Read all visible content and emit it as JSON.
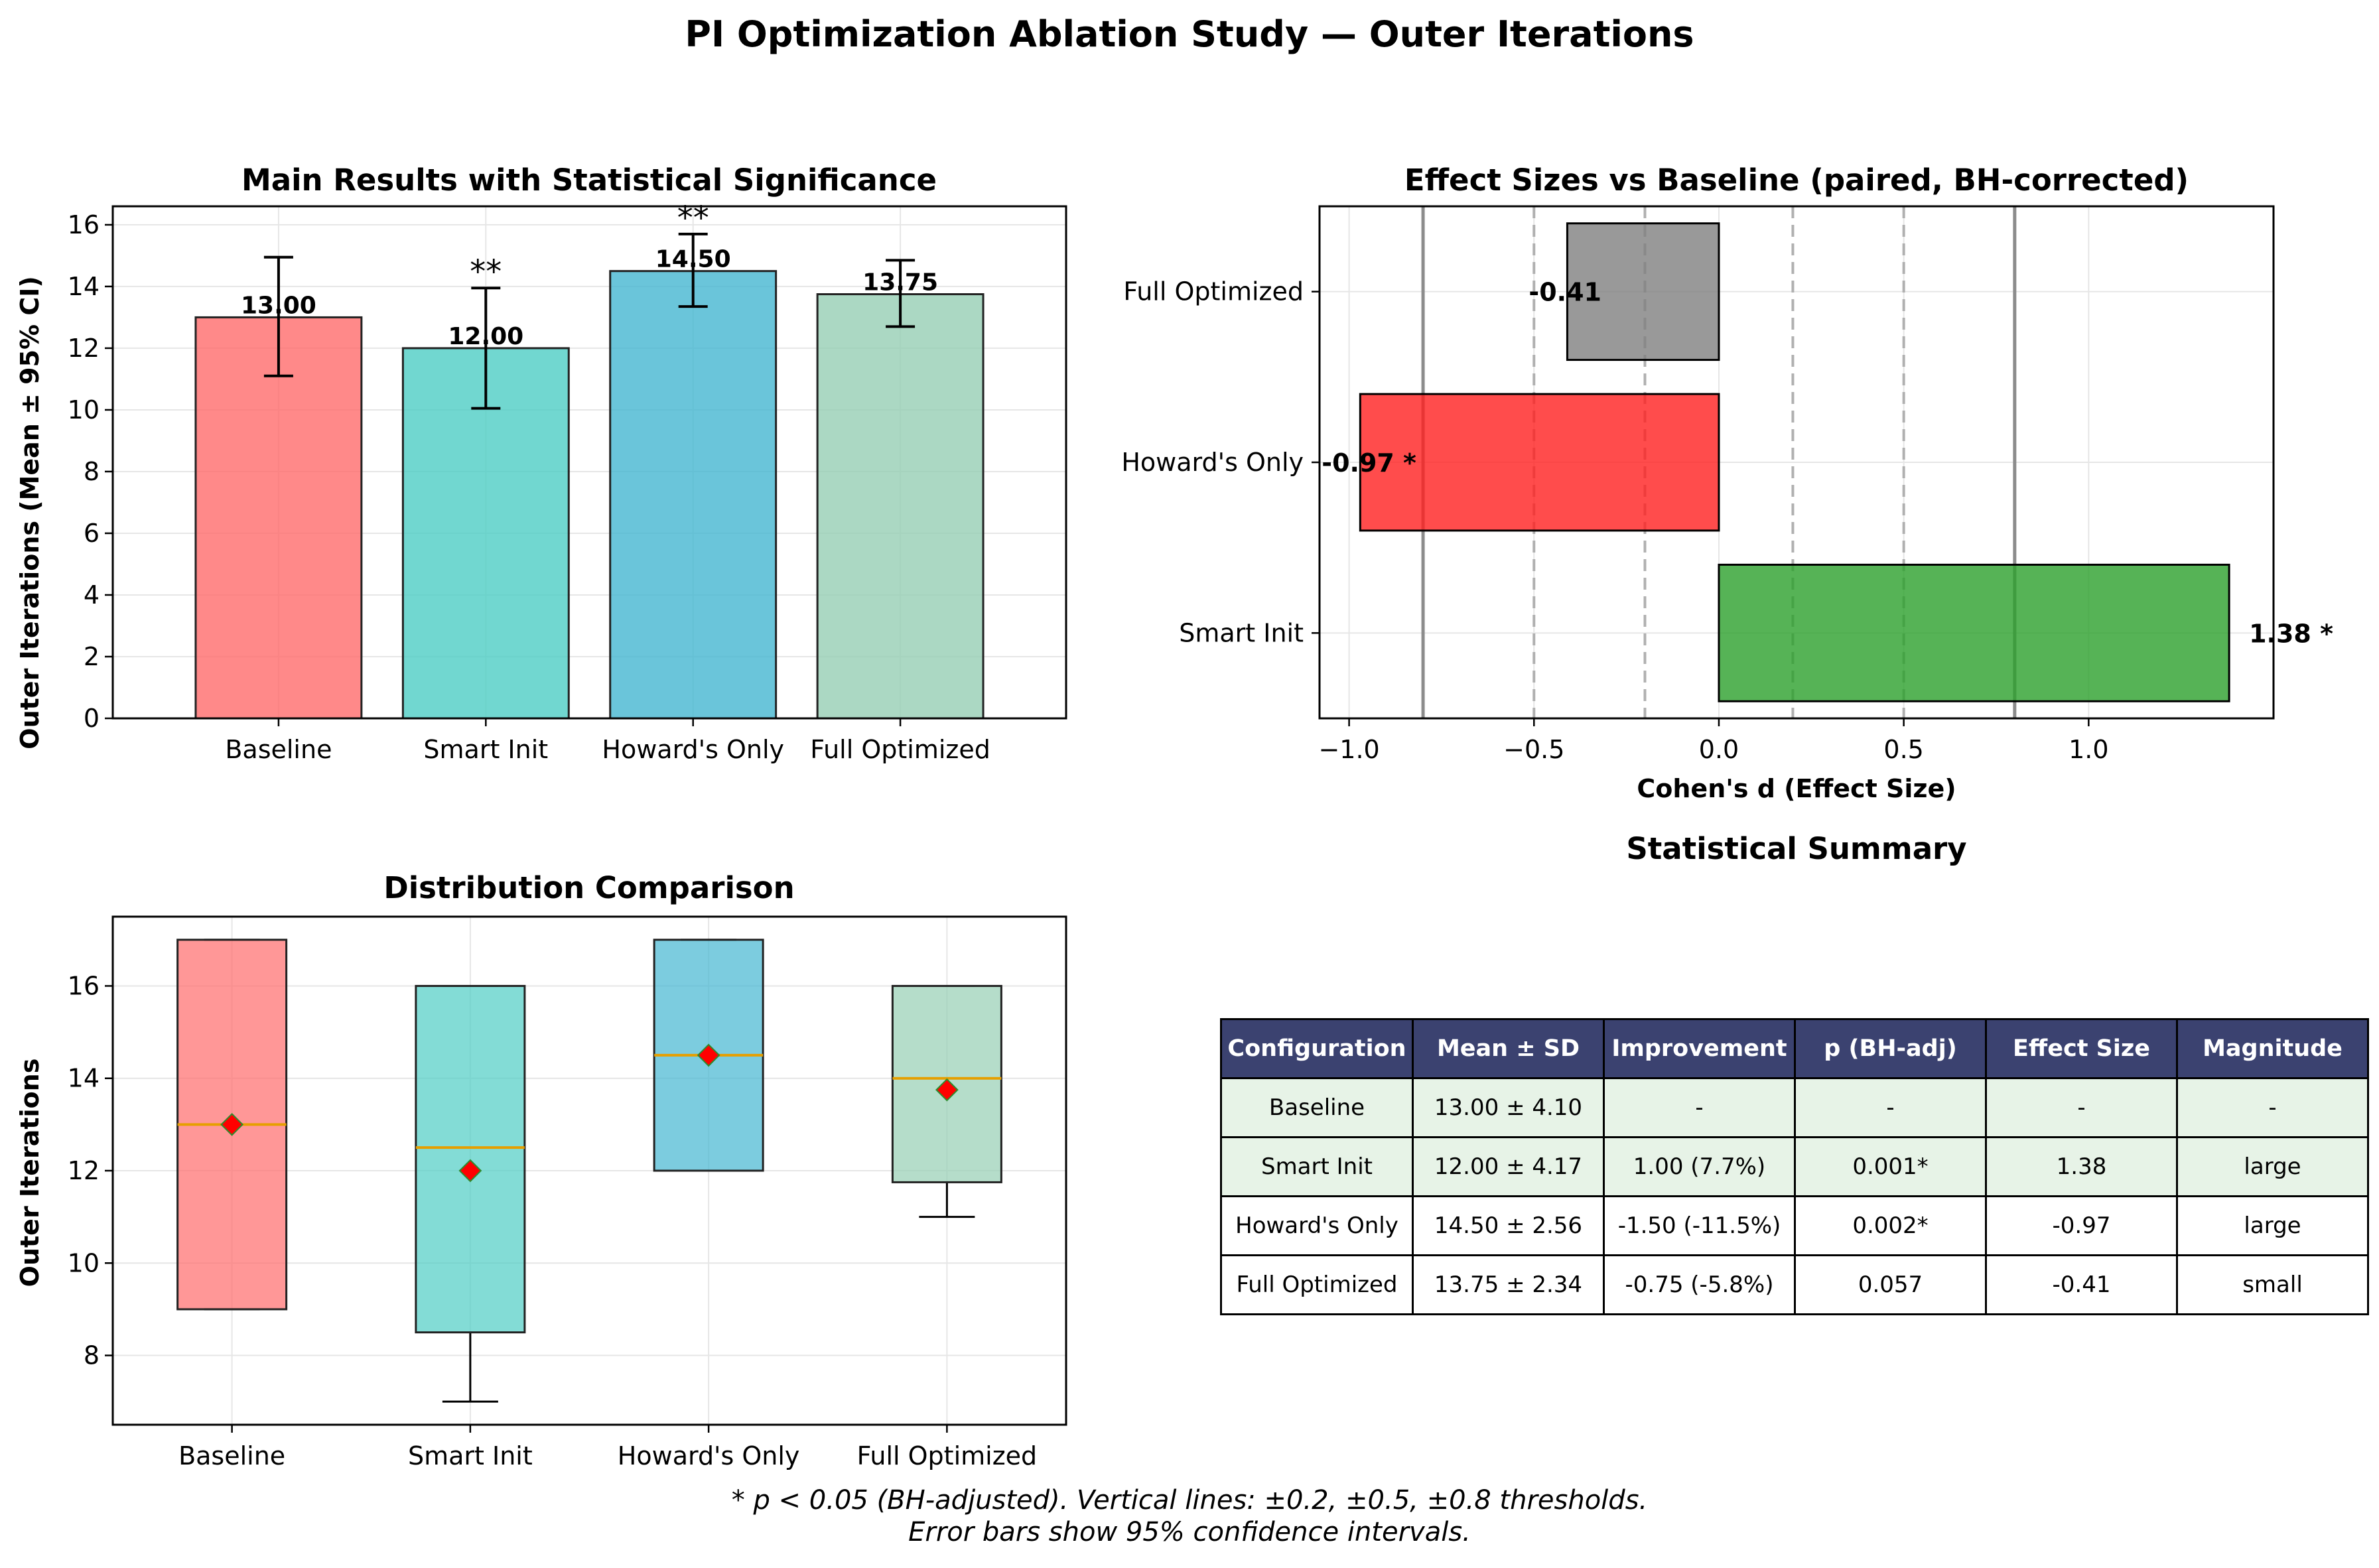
{
  "figure_title": "PI Optimization Ablation Study — Outer Iterations",
  "footnote": {
    "line1": "* p < 0.05 (BH-adjusted). Vertical lines: ±0.2, ±0.5, ±0.8 thresholds.",
    "line2": "Error bars show 95% confidence intervals."
  },
  "colors": {
    "baseline": "#ff6b6b",
    "smart_init": "#4ecdc4",
    "howards_only": "#45b7d1",
    "full_optimized": "#96ceb4",
    "effect_positive": "#2ca02c",
    "effect_negative": "#ff1f1f",
    "effect_neutral": "#808080",
    "mean_marker": "#ff0000",
    "median_line": "#e69f00",
    "table_header": "#3b4270",
    "table_shade": "#e7f3e7"
  },
  "chart_data": [
    {
      "id": "main",
      "type": "bar",
      "title": "Main Results with Statistical Significance",
      "xlabel": "",
      "ylabel": "Outer Iterations (Mean ± 95% CI)",
      "categories": [
        "Baseline",
        "Smart Init",
        "Howard's Only",
        "Full Optimized"
      ],
      "values": [
        13.0,
        12.0,
        14.5,
        13.75
      ],
      "value_labels": [
        "13.00",
        "12.00",
        "14.50",
        "13.75"
      ],
      "ci_low": [
        11.1,
        10.05,
        13.35,
        12.7
      ],
      "ci_high": [
        14.95,
        13.95,
        15.7,
        14.85
      ],
      "significance": [
        "",
        "**",
        "**",
        ""
      ],
      "ylim": [
        0,
        16.6
      ],
      "yticks": [
        0,
        2,
        4,
        6,
        8,
        10,
        12,
        14,
        16
      ],
      "grid": true
    },
    {
      "id": "effect",
      "type": "bar",
      "orientation": "horizontal",
      "title": "Effect Sizes vs Baseline (paired, BH-corrected)",
      "xlabel": "Cohen's d (Effect Size)",
      "ylabel": "",
      "categories": [
        "Smart Init",
        "Howard's Only",
        "Full Optimized"
      ],
      "values": [
        1.38,
        -0.97,
        -0.41
      ],
      "value_labels": [
        "1.38 *",
        "-0.97 *",
        "-0.41"
      ],
      "xlim": [
        -1.08,
        1.5
      ],
      "xticks": [
        -1.0,
        -0.5,
        0.0,
        0.5,
        1.0
      ],
      "xtick_labels": [
        "−1.0",
        "−0.5",
        "0.0",
        "0.5",
        "1.0"
      ],
      "thresholds": [
        -0.8,
        -0.5,
        -0.2,
        0.2,
        0.5,
        0.8
      ],
      "grid": true
    },
    {
      "id": "dist",
      "type": "box",
      "title": "Distribution Comparison",
      "xlabel": "",
      "ylabel": "Outer Iterations",
      "categories": [
        "Baseline",
        "Smart Init",
        "Howard's Only",
        "Full Optimized"
      ],
      "boxes": [
        {
          "whislo": 9,
          "q1": 9,
          "med": 13,
          "q3": 17,
          "whishi": 17,
          "mean": 13.0
        },
        {
          "whislo": 7,
          "q1": 8.5,
          "med": 12.5,
          "q3": 16,
          "whishi": 16,
          "mean": 12.0
        },
        {
          "whislo": 12,
          "q1": 12,
          "med": 14.5,
          "q3": 17,
          "whishi": 17,
          "mean": 14.5
        },
        {
          "whislo": 11,
          "q1": 11.75,
          "med": 14,
          "q3": 16,
          "whishi": 16,
          "mean": 13.75
        }
      ],
      "ylim": [
        6.5,
        17.5
      ],
      "yticks": [
        8,
        10,
        12,
        14,
        16
      ],
      "grid": true
    }
  ],
  "summary": {
    "title": "Statistical Summary",
    "headers": [
      "Configuration",
      "Mean ± SD",
      "Improvement",
      "p (BH-adj)",
      "Effect Size",
      "Magnitude"
    ],
    "rows": [
      [
        "Baseline",
        "13.00 ± 4.10",
        "-",
        "-",
        "-",
        "-"
      ],
      [
        "Smart Init",
        "12.00 ± 4.17",
        "1.00 (7.7%)",
        "0.001*",
        "1.38",
        "large"
      ],
      [
        "Howard's Only",
        "14.50 ± 2.56",
        "-1.50 (-11.5%)",
        "0.002*",
        "-0.97",
        "large"
      ],
      [
        "Full Optimized",
        "13.75 ± 2.34",
        "-0.75 (-5.8%)",
        "0.057",
        "-0.41",
        "small"
      ]
    ]
  }
}
